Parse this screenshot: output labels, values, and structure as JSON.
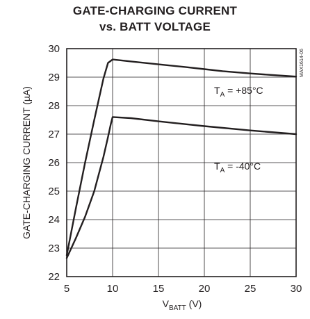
{
  "chart_data": {
    "type": "line",
    "title_line1": "GATE-CHARGING CURRENT",
    "title_line2": "vs. BATT VOLTAGE",
    "xlabel_main": "V",
    "xlabel_sub": "BATT",
    "xlabel_unit": " (V)",
    "ylabel": "GATE-CHARGING CURRENT (µA)",
    "figure_code": "MAX1614-06",
    "xlim": [
      5,
      30
    ],
    "ylim": [
      22,
      30
    ],
    "x_ticks": [
      "5",
      "10",
      "15",
      "20",
      "25",
      "30"
    ],
    "y_ticks": [
      "22",
      "23",
      "24",
      "25",
      "26",
      "27",
      "28",
      "29",
      "30"
    ],
    "grid": true,
    "series": [
      {
        "label_main": "T",
        "label_sub": "A",
        "label_rest": " = +85°C",
        "x": [
          5,
          6,
          7,
          8,
          9,
          9.5,
          10,
          12,
          15,
          18,
          20,
          22,
          25,
          28,
          30
        ],
        "y": [
          22.75,
          24.4,
          26.0,
          27.5,
          28.95,
          29.5,
          29.62,
          29.55,
          29.45,
          29.35,
          29.28,
          29.21,
          29.13,
          29.06,
          29.02
        ]
      },
      {
        "label_main": "T",
        "label_sub": "A",
        "label_rest": " = -40°C",
        "x": [
          5,
          6,
          7,
          8,
          9,
          9.5,
          9.8,
          10,
          12,
          15,
          20,
          25,
          30
        ],
        "y": [
          22.65,
          23.35,
          24.1,
          25.0,
          26.2,
          26.9,
          27.35,
          27.6,
          27.56,
          27.45,
          27.28,
          27.13,
          27.0
        ]
      }
    ]
  }
}
